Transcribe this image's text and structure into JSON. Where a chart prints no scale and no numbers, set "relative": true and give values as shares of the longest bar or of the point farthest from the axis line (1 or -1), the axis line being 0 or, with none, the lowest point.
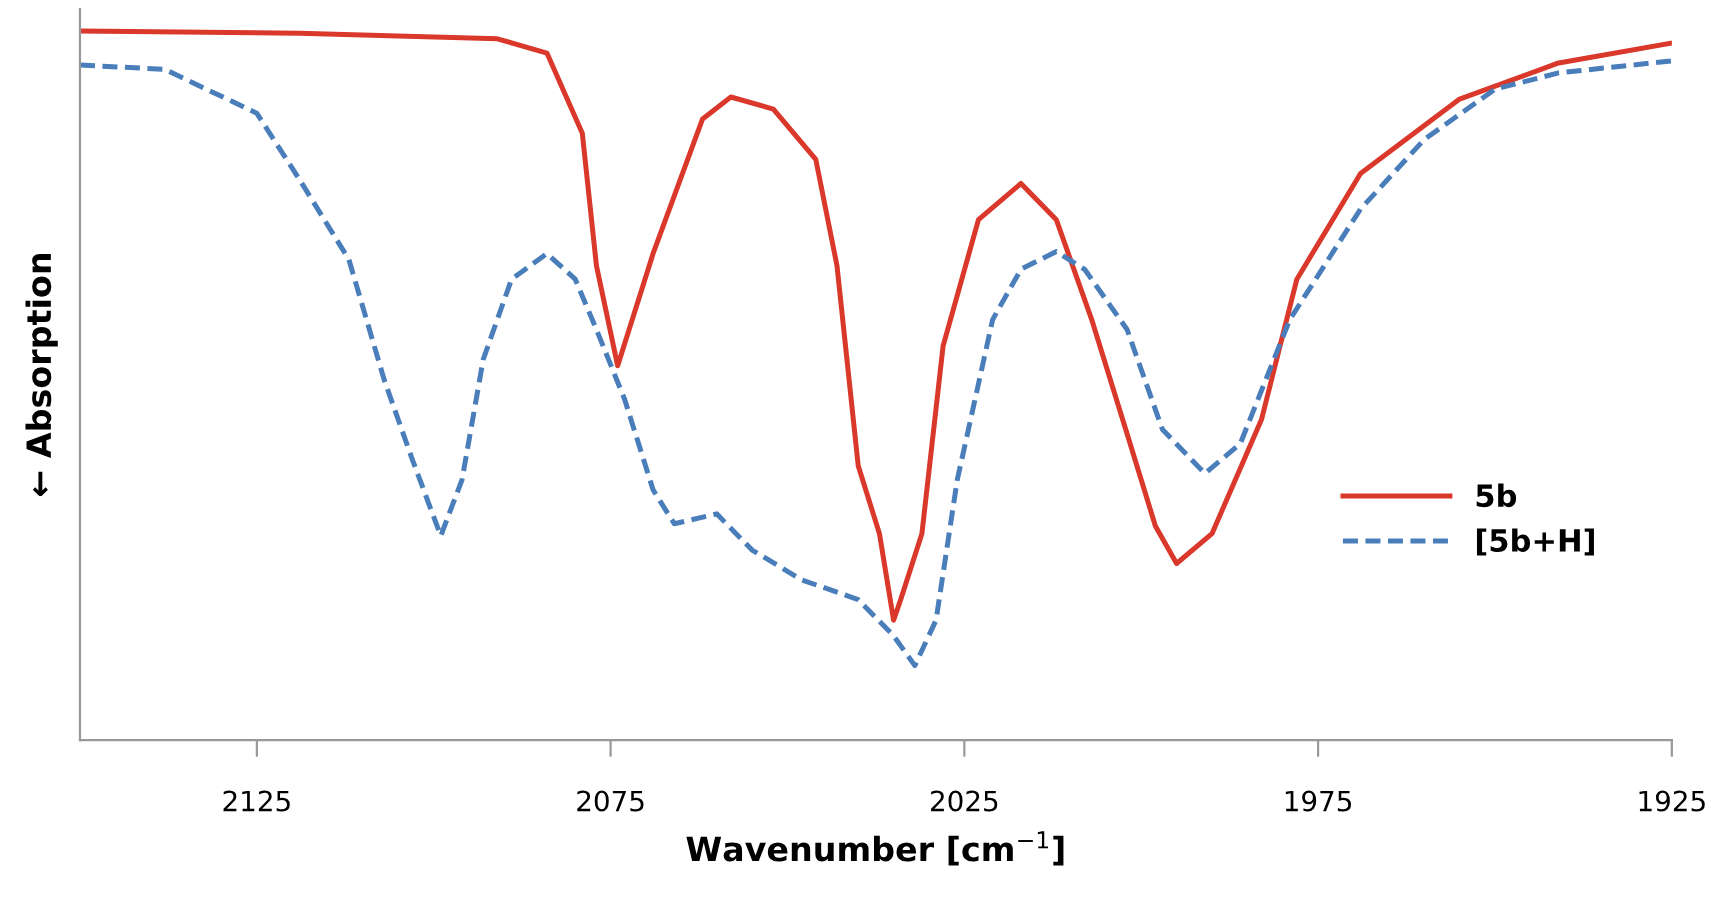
{
  "chart_data": {
    "type": "line",
    "xlabel": "Wavenumber [cm$^{−1}$]",
    "ylabel": "← Absorption",
    "relative": true,
    "xlim": [
      2150,
      1925
    ],
    "xticks": [
      2125,
      2075,
      2025,
      1975,
      1925
    ],
    "grid": false,
    "legend": "right",
    "marker": "none",
    "series": [
      {
        "name": "5b",
        "color": "#d9382b",
        "line_style": "solid",
        "x": [
          2150,
          2119,
          2091,
          2084,
          2079,
          2077,
          2074,
          2069,
          2062,
          2058,
          2052,
          2046,
          2043,
          2040,
          2037,
          2035,
          2034,
          2031,
          2028,
          2023,
          2017,
          2012,
          2007,
          2002,
          1998,
          1995,
          1990,
          1983,
          1978,
          1969,
          1955,
          1941,
          1925
        ],
        "values": [
          1.0,
          0.997,
          0.989,
          0.969,
          0.856,
          0.669,
          0.528,
          0.686,
          0.876,
          0.907,
          0.89,
          0.819,
          0.669,
          0.387,
          0.291,
          0.169,
          0.198,
          0.291,
          0.556,
          0.734,
          0.785,
          0.734,
          0.593,
          0.432,
          0.302,
          0.249,
          0.291,
          0.452,
          0.65,
          0.799,
          0.904,
          0.955,
          0.983
        ]
      },
      {
        "name": "[5b+H]",
        "color": "#4a7ebb",
        "line_style": "dashed",
        "x": [
          2150,
          2138,
          2125,
          2119,
          2112,
          2107,
          2103,
          2099,
          2096,
          2093,
          2089,
          2084,
          2080,
          2077,
          2073,
          2069,
          2066,
          2060,
          2055,
          2048,
          2040,
          2035,
          2032,
          2029,
          2026,
          2021,
          2017,
          2012,
          2008,
          2002,
          1997,
          1991,
          1986,
          1979,
          1969,
          1960,
          1950,
          1941,
          1925
        ],
        "values": [
          0.952,
          0.946,
          0.884,
          0.791,
          0.678,
          0.508,
          0.395,
          0.288,
          0.367,
          0.537,
          0.65,
          0.686,
          0.65,
          0.579,
          0.48,
          0.353,
          0.305,
          0.319,
          0.268,
          0.226,
          0.198,
          0.147,
          0.105,
          0.169,
          0.367,
          0.593,
          0.664,
          0.689,
          0.664,
          0.579,
          0.438,
          0.376,
          0.418,
          0.593,
          0.749,
          0.847,
          0.918,
          0.941,
          0.958
        ]
      }
    ]
  }
}
